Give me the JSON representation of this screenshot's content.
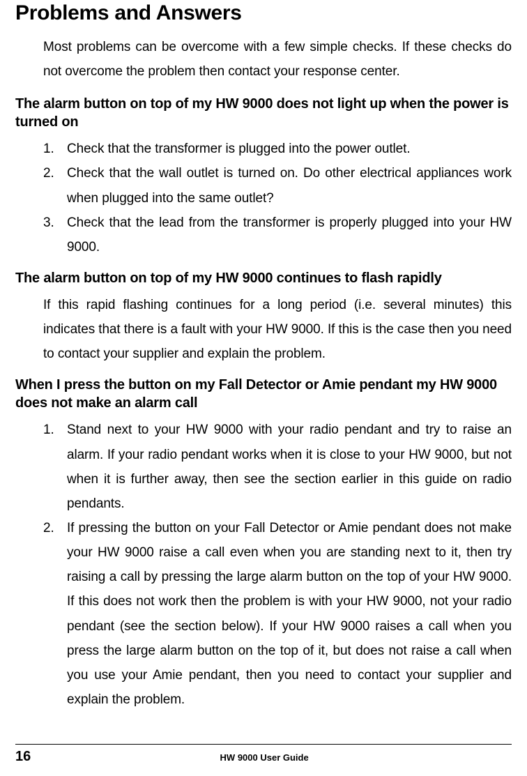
{
  "title": "Problems and Answers",
  "intro": "Most problems can be overcome with a few simple checks. If these checks do not overcome the problem then contact your response center.",
  "q1": {
    "heading": "The alarm button on top of my HW 9000 does not light up when the power is turned on",
    "steps": [
      "Check that the transformer is plugged into the power outlet.",
      "Check that the wall outlet is turned on. Do other electrical appliances work when plugged into the same outlet?",
      "Check that the lead from the transformer is properly plugged into your HW 9000."
    ]
  },
  "q2": {
    "heading": "The alarm button on top of my HW 9000 continues to flash rapidly",
    "body": "If this rapid flashing continues for a long period (i.e. several minutes) this indicates that there is a fault with your HW 9000. If this is the case then you need to contact your supplier and explain the problem."
  },
  "q3": {
    "heading": "When I press the button on my Fall Detector or Amie pendant my HW 9000 does not make an alarm call",
    "steps": [
      "Stand next to your HW 9000 with your radio pendant and try to raise an alarm. If your radio pendant works when it is close to your HW 9000, but not when it is further away, then see the section earlier in this guide on radio pendants.",
      "If pressing the button on your Fall Detector or Amie pendant does not make your HW 9000 raise a call even when you are standing next to it, then try raising a call by pressing the large alarm button on the top of your HW 9000. If this does not work then the problem is with your HW 9000, not your radio pendant (see the section below). If your HW 9000 raises a call when you press the large alarm button on the top of it, but does not raise a call when you use your Amie pendant, then you need to contact your supplier and explain the problem."
    ]
  },
  "footer": {
    "page": "16",
    "label": "HW 9000 User Guide"
  }
}
